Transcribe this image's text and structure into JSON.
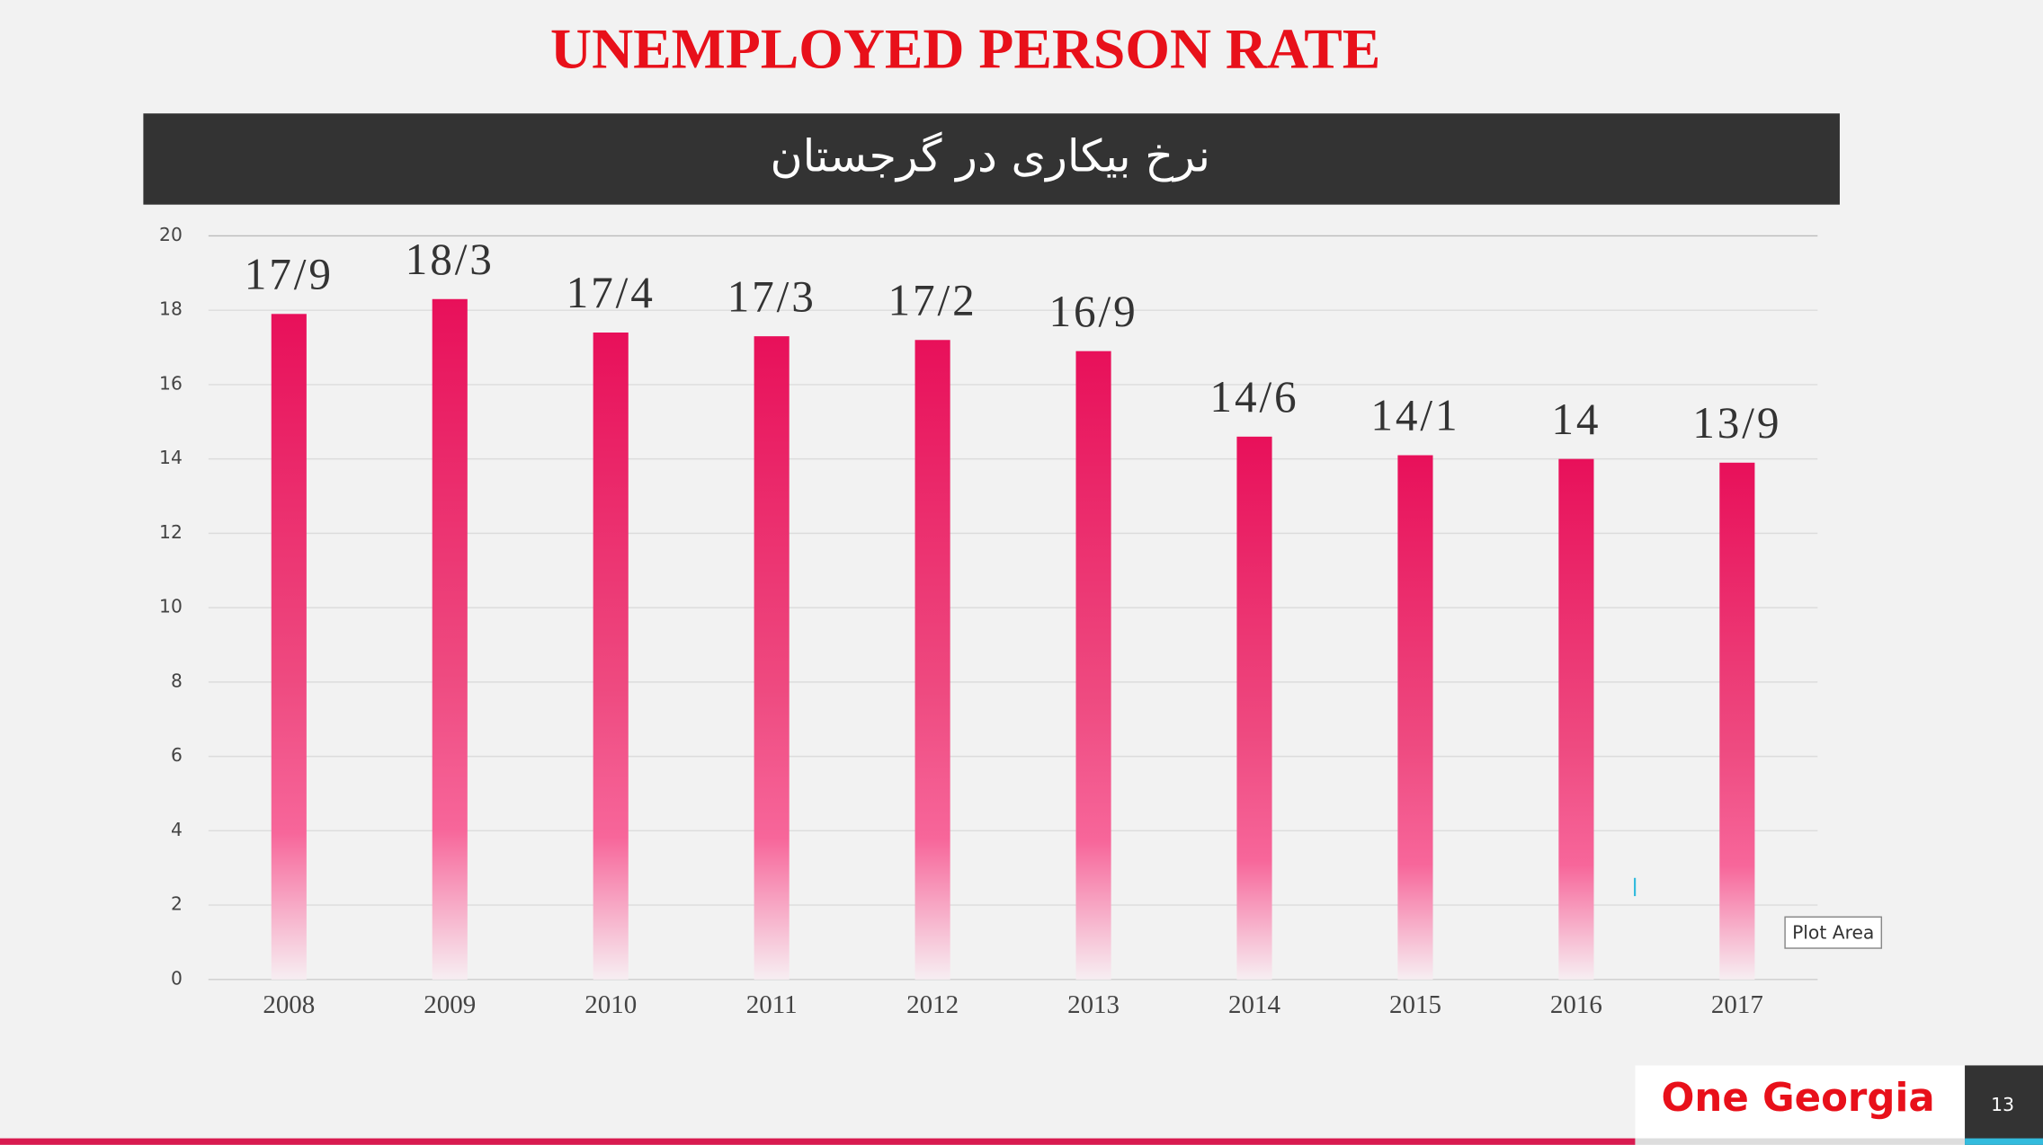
{
  "chart_data": {
    "type": "bar",
    "title": "UNEMPLOYED PERSON RATE",
    "subtitle": "نرخ بیکاری در گرجستان",
    "categories": [
      "2008",
      "2009",
      "2010",
      "2011",
      "2012",
      "2013",
      "2014",
      "2015",
      "2016",
      "2017"
    ],
    "values": [
      17.9,
      18.3,
      17.4,
      17.3,
      17.2,
      16.9,
      14.6,
      14.1,
      14,
      13.9
    ],
    "value_labels": [
      "17/9",
      "18/3",
      "17/4",
      "17/3",
      "17/2",
      "16/9",
      "14/6",
      "14/1",
      "14",
      "13/9"
    ],
    "color": "#e8105a",
    "ylim": [
      0,
      20
    ],
    "yticks": [
      0,
      2,
      4,
      6,
      8,
      10,
      12,
      14,
      16,
      18,
      20
    ],
    "grid": true
  },
  "tooltip": "Plot Area",
  "brand": "One Georgia",
  "page_number": "13"
}
